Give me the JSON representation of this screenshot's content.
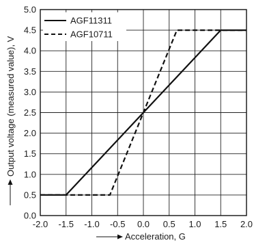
{
  "chart_data": {
    "type": "line",
    "xlabel": "Acceleration, G",
    "ylabel": "Output voltage (measured value), V",
    "xlim": [
      -2.0,
      2.0
    ],
    "ylim": [
      0.0,
      5.0
    ],
    "x_ticks": [
      "-2.0",
      "-1.5",
      "-1.0",
      "-0.5",
      "0.0",
      "0.5",
      "1.0",
      "1.5",
      "2.0"
    ],
    "y_ticks": [
      "0.0",
      "0.5",
      "1.0",
      "1.5",
      "2.0",
      "2.5",
      "3.0",
      "3.5",
      "4.0",
      "4.5",
      "5.0"
    ],
    "grid": true,
    "legend_position": "top-left",
    "series": [
      {
        "name": "AGF11311",
        "style": "solid",
        "x": [
          -2.0,
          -1.5,
          1.5,
          2.0
        ],
        "y": [
          0.5,
          0.5,
          4.5,
          4.5
        ]
      },
      {
        "name": "AGF10711",
        "style": "dashed",
        "x": [
          -2.0,
          -0.65,
          0.0,
          0.65,
          2.0
        ],
        "y": [
          0.5,
          0.5,
          2.5,
          4.5,
          4.5
        ]
      }
    ]
  }
}
